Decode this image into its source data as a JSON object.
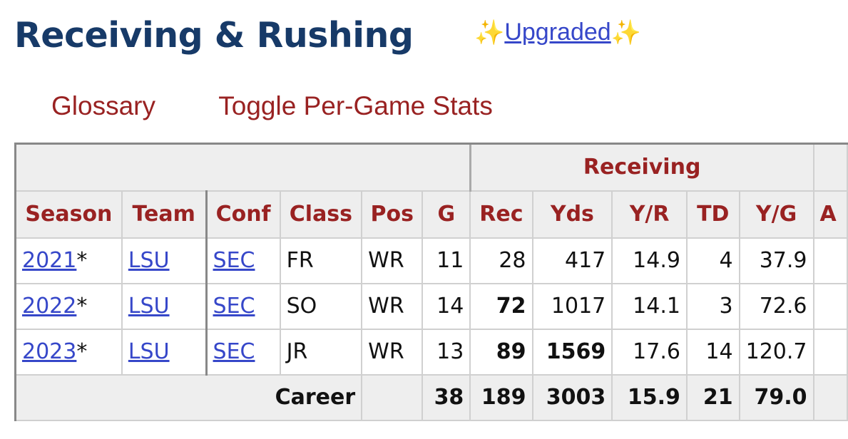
{
  "header": {
    "title": "Receiving & Rushing",
    "upgraded_label": "Upgraded"
  },
  "links": {
    "glossary": "Glossary",
    "toggle": "Toggle Per-Game Stats"
  },
  "table": {
    "over_header": "Receiving",
    "columns": [
      "Season",
      "Team",
      "Conf",
      "Class",
      "Pos",
      "G",
      "Rec",
      "Yds",
      "Y/R",
      "TD",
      "Y/G",
      "A"
    ],
    "rows": [
      {
        "season": "2021",
        "marker": "*",
        "team": "LSU",
        "conf": "SEC",
        "class": "FR",
        "pos": "WR",
        "g": "11",
        "rec": "28",
        "yds": "417",
        "yr": "14.9",
        "td": "4",
        "yg": "37.9"
      },
      {
        "season": "2022",
        "marker": "*",
        "team": "LSU",
        "conf": "SEC",
        "class": "SO",
        "pos": "WR",
        "g": "14",
        "rec": "72",
        "yds": "1017",
        "yr": "14.1",
        "td": "3",
        "yg": "72.6"
      },
      {
        "season": "2023",
        "marker": "*",
        "team": "LSU",
        "conf": "SEC",
        "class": "JR",
        "pos": "WR",
        "g": "13",
        "rec": "89",
        "yds": "1569",
        "yr": "17.6",
        "td": "14",
        "yg": "120.7"
      }
    ],
    "career": {
      "label": "Career",
      "g": "38",
      "rec": "189",
      "yds": "3003",
      "yr": "15.9",
      "td": "21",
      "yg": "79.0"
    }
  },
  "colors": {
    "title": "#173a68",
    "header_text": "#992222",
    "link": "#3647c9",
    "header_bg": "#eeeeee"
  },
  "icons": [
    "sparkles-icon",
    "sparkles-icon"
  ]
}
